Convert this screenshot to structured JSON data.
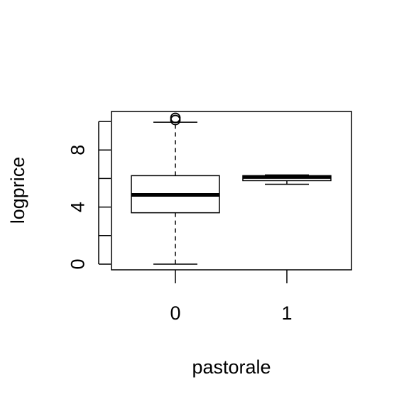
{
  "chart_data": {
    "type": "boxplot",
    "xlabel": "pastorale",
    "ylabel": "logprice",
    "categories": [
      "0",
      "1"
    ],
    "y_ticks": [
      0,
      2,
      4,
      6,
      8,
      10
    ],
    "y_tick_labels": [
      "0",
      "",
      "4",
      "",
      "8",
      ""
    ],
    "ylim": [
      -0.4,
      10.7
    ],
    "series": [
      {
        "group": "0",
        "whisker_low": 0.0,
        "q1": 3.6,
        "median": 4.85,
        "q3": 6.2,
        "whisker_high": 9.95,
        "outliers": [
          10.1,
          10.25
        ]
      },
      {
        "group": "1",
        "whisker_low": 5.6,
        "q1": 5.85,
        "median": 6.1,
        "q3": 6.2,
        "whisker_high": 6.25,
        "outliers": []
      }
    ],
    "colors": {
      "box_fill": "#ffffff",
      "stroke": "#000000"
    }
  }
}
